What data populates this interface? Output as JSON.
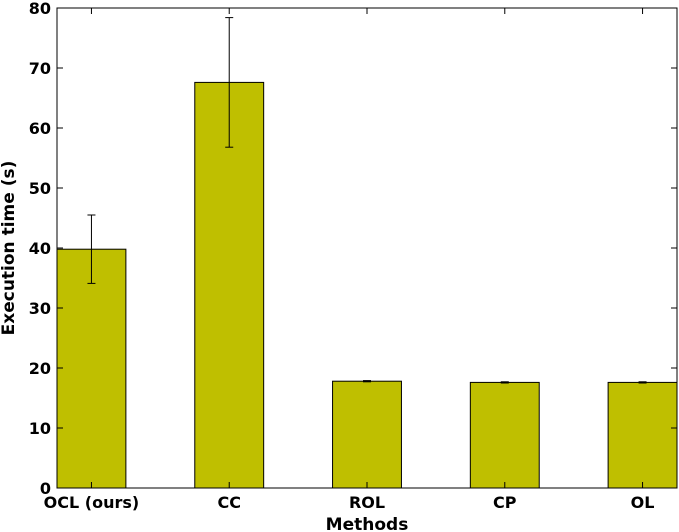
{
  "chart_data": {
    "type": "bar",
    "xlabel": "Methods",
    "ylabel": "Execution time (s)",
    "ylim": [
      0,
      80
    ],
    "yticks": [
      0,
      10,
      20,
      30,
      40,
      50,
      60,
      70,
      80
    ],
    "categories": [
      "OCL (ours)",
      "CC",
      "ROL",
      "CP",
      "OL"
    ],
    "values": [
      39.8,
      67.6,
      17.8,
      17.6,
      17.6
    ],
    "errors": [
      5.7,
      10.8,
      0.1,
      0.1,
      0.1
    ],
    "bar_color": "#bfbf00",
    "grid": false,
    "legend": "none"
  }
}
